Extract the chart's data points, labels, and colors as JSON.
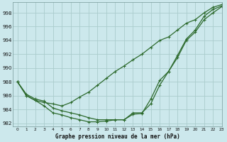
{
  "title": "Graphe pression niveau de la mer (hPa)",
  "background_color": "#cce8ec",
  "grid_color": "#aacccc",
  "line_color": "#2d6a2d",
  "xlim": [
    -0.5,
    23
  ],
  "ylim": [
    981.5,
    999.5
  ],
  "yticks": [
    982,
    984,
    986,
    988,
    990,
    992,
    994,
    996,
    998
  ],
  "xticks": [
    0,
    1,
    2,
    3,
    4,
    5,
    6,
    7,
    8,
    9,
    10,
    11,
    12,
    13,
    14,
    15,
    16,
    17,
    18,
    19,
    20,
    21,
    22,
    23
  ],
  "series": [
    [
      988.0,
      986.2,
      985.5,
      985.2,
      984.2,
      983.8,
      983.5,
      983.2,
      982.8,
      982.5,
      982.5,
      982.5,
      982.5,
      983.5,
      983.5,
      984.8,
      987.5,
      989.5,
      991.5,
      994.0,
      995.2,
      997.0,
      998.0,
      998.9
    ],
    [
      988.0,
      986.0,
      985.3,
      984.5,
      983.5,
      983.2,
      982.8,
      982.5,
      982.2,
      982.2,
      982.3,
      982.5,
      982.5,
      983.3,
      983.4,
      985.5,
      988.2,
      989.5,
      991.8,
      994.2,
      995.5,
      997.5,
      998.5,
      999.0
    ],
    [
      988.0,
      986.0,
      985.3,
      985.0,
      984.8,
      984.5,
      985.0,
      985.8,
      986.5,
      987.5,
      988.5,
      989.5,
      990.3,
      991.2,
      992.0,
      993.0,
      994.0,
      994.5,
      995.5,
      996.5,
      997.0,
      998.0,
      998.8,
      999.2
    ]
  ]
}
